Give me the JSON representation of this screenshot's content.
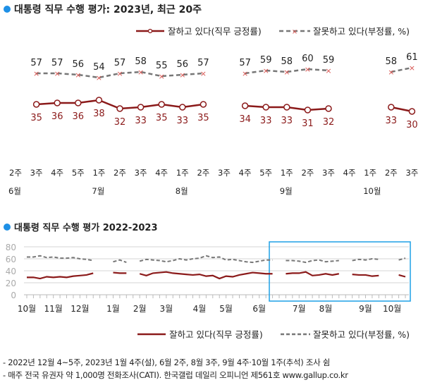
{
  "chart_data": [
    {
      "type": "line",
      "title": "대통령 직무 수행 평가: 2023년, 최근 20주",
      "x_week_labels": [
        "2주",
        "3주",
        "4주",
        "5주",
        "1주",
        "2주",
        "3주",
        "4주",
        "1주",
        "2주",
        "3주",
        "4주",
        "5주",
        "1주",
        "2주",
        "3주",
        "4주",
        "1주",
        "2주",
        "3주"
      ],
      "x_month_labels": [
        {
          "label": "6월",
          "at": 0
        },
        {
          "label": "7월",
          "at": 4
        },
        {
          "label": "8월",
          "at": 8
        },
        {
          "label": "9월",
          "at": 13
        },
        {
          "label": "10월",
          "at": 17
        }
      ],
      "series": [
        {
          "name": "잘하고 있다(직무 긍정률)",
          "color": "#8b1a1a",
          "marker": "circle",
          "values": [
            null,
            35,
            36,
            36,
            38,
            32,
            33,
            35,
            33,
            35,
            null,
            34,
            33,
            33,
            31,
            32,
            null,
            null,
            33,
            30
          ]
        },
        {
          "name": "잘못하고 있다(부정률, %)",
          "color": "#777777",
          "marker_color": "#d9534f",
          "marker": "x",
          "dashed": true,
          "values": [
            null,
            57,
            57,
            56,
            54,
            57,
            58,
            55,
            56,
            57,
            null,
            57,
            59,
            58,
            60,
            59,
            null,
            null,
            58,
            61
          ]
        }
      ],
      "legend_position": "top-right",
      "grid": false
    },
    {
      "type": "line",
      "title": "대통령 직무 수행 평가 2022-2023",
      "ylim": [
        0,
        80
      ],
      "y_ticks": [
        "0",
        "20",
        "40",
        "60",
        "80"
      ],
      "grid": true,
      "x_month_labels": [
        {
          "label": "10월",
          "at": 0
        },
        {
          "label": "11월",
          "at": 4
        },
        {
          "label": "12월",
          "at": 8
        },
        {
          "label": "1월",
          "at": 13
        },
        {
          "label": "2월",
          "at": 17
        },
        {
          "label": "3월",
          "at": 21
        },
        {
          "label": "4월",
          "at": 26
        },
        {
          "label": "5월",
          "at": 30
        },
        {
          "label": "6월",
          "at": 35
        },
        {
          "label": "7월",
          "at": 41
        },
        {
          "label": "8월",
          "at": 45
        },
        {
          "label": "9월",
          "at": 51
        },
        {
          "label": "10월",
          "at": 55
        }
      ],
      "highlight_range": [
        38,
        57
      ],
      "highlight_color": "#1ea0e6",
      "series": [
        {
          "name": "잘하고 있다(직무 긍정률)",
          "color": "#8b1a1a",
          "values": [
            29,
            29,
            27,
            30,
            29,
            30,
            29,
            31,
            32,
            33,
            36,
            null,
            null,
            37,
            36,
            36,
            null,
            35,
            32,
            36,
            37,
            38,
            36,
            35,
            34,
            33,
            34,
            31,
            32,
            27,
            31,
            30,
            33,
            35,
            37,
            36,
            35,
            35,
            null,
            35,
            36,
            36,
            38,
            32,
            33,
            35,
            33,
            35,
            null,
            34,
            33,
            33,
            31,
            32,
            null,
            null,
            33,
            30
          ]
        },
        {
          "name": "잘못하고 있다(부정률, %)",
          "color": "#777777",
          "dashed": true,
          "values": [
            63,
            63,
            65,
            62,
            63,
            61,
            61,
            62,
            60,
            59,
            57,
            null,
            null,
            55,
            58,
            54,
            null,
            56,
            59,
            58,
            57,
            55,
            57,
            60,
            58,
            60,
            61,
            65,
            62,
            63,
            58,
            59,
            57,
            55,
            54,
            56,
            58,
            58,
            null,
            57,
            57,
            56,
            54,
            57,
            58,
            55,
            56,
            57,
            null,
            57,
            59,
            58,
            60,
            59,
            null,
            null,
            58,
            61
          ]
        }
      ],
      "legend_position": "bottom-right"
    }
  ],
  "legend": {
    "approve": "잘하고 있다(직무 긍정률)",
    "disapprove": "잘못하고 있다(부정률, %)"
  },
  "notes": [
    "- 2022년 12월 4~5주, 2023년 1월 4주(설), 6월 2주, 8월 3주, 9월 4주·10월 1주(추석) 조사 쉼",
    "- 매주 전국 유권자 약 1,000명 전화조사(CATI). 한국갤럽 데일리 오피니언 제561호 www.gallup.co.kr"
  ],
  "bullet_color": "#1e90e6"
}
